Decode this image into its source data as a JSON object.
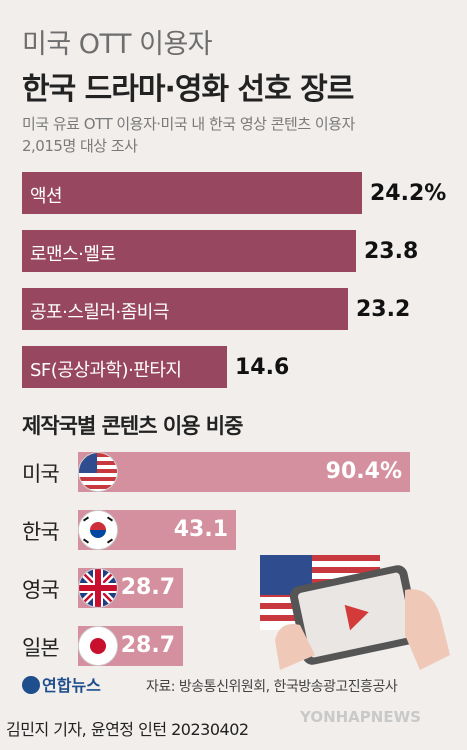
{
  "header": {
    "title_line1": "미국 OTT 이용자",
    "title_line2": "한국 드라마·영화 선호 장르",
    "subtitle_line1": "미국 유료 OTT 이용자·미국 내 한국 영상 콘텐츠 이용자",
    "subtitle_line2": "2,015명 대상 조사"
  },
  "chart_data": [
    {
      "type": "bar",
      "orientation": "horizontal",
      "categories": [
        "액션",
        "로맨스·멜로",
        "공포·스릴러·좀비극",
        "SF(공상과학)·판타지"
      ],
      "values": [
        24.2,
        23.8,
        23.2,
        14.6
      ],
      "value_labels": [
        "24.2%",
        "23.8",
        "23.2",
        "14.6"
      ],
      "color": "#97475f"
    },
    {
      "type": "bar",
      "orientation": "horizontal",
      "title": "제작국별 콘텐츠 이용 비중",
      "categories": [
        "미국",
        "한국",
        "영국",
        "일본"
      ],
      "values": [
        90.4,
        43.1,
        28.7,
        28.7
      ],
      "value_labels": [
        "90.4%",
        "43.1",
        "28.7",
        "28.7"
      ],
      "flags": [
        "us-flag-icon",
        "korea-flag-icon",
        "uk-flag-icon",
        "japan-flag-icon"
      ],
      "color": "#d4909f"
    }
  ],
  "footer": {
    "logo": "연합뉴스",
    "source": "자료: 방송통신위원회, 한국방송광고진흥공사",
    "credit": "김민지 기자, 윤연정 인턴  20230402",
    "watermark": "YONHAPNEWS"
  }
}
